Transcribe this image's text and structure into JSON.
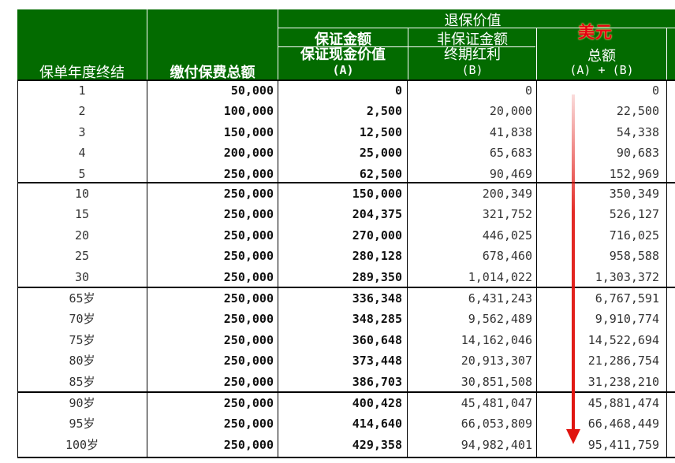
{
  "header": {
    "year_col": "保单年度终结",
    "premium_col": "缴付保费总额",
    "surrender_value": "退保价值",
    "guaranteed": "保证金额",
    "non_guaranteed": "非保证金额",
    "gcv": "保证现金价值",
    "gcv_sub": "(A)",
    "terminal_bonus": "终期红利",
    "terminal_bonus_sub": "(B)",
    "total": "总额",
    "total_sub": "(A) + (B)",
    "currency_annotation": "美元"
  },
  "colors": {
    "header_bg": "#036b00",
    "annotation": "#e60012",
    "arrow": "#e0140f"
  },
  "groups": [
    [
      {
        "year": "1",
        "premium": "50,000",
        "gcv": "0",
        "bonus": "0",
        "total": "0"
      },
      {
        "year": "2",
        "premium": "100,000",
        "gcv": "2,500",
        "bonus": "20,000",
        "total": "22,500"
      },
      {
        "year": "3",
        "premium": "150,000",
        "gcv": "12,500",
        "bonus": "41,838",
        "total": "54,338"
      },
      {
        "year": "4",
        "premium": "200,000",
        "gcv": "25,000",
        "bonus": "65,683",
        "total": "90,683"
      },
      {
        "year": "5",
        "premium": "250,000",
        "gcv": "62,500",
        "bonus": "90,469",
        "total": "152,969"
      }
    ],
    [
      {
        "year": "10",
        "premium": "250,000",
        "gcv": "150,000",
        "bonus": "200,349",
        "total": "350,349"
      },
      {
        "year": "15",
        "premium": "250,000",
        "gcv": "204,375",
        "bonus": "321,752",
        "total": "526,127"
      },
      {
        "year": "20",
        "premium": "250,000",
        "gcv": "270,000",
        "bonus": "446,025",
        "total": "716,025"
      },
      {
        "year": "25",
        "premium": "250,000",
        "gcv": "280,128",
        "bonus": "678,460",
        "total": "958,588"
      },
      {
        "year": "30",
        "premium": "250,000",
        "gcv": "289,350",
        "bonus": "1,014,022",
        "total": "1,303,372"
      }
    ],
    [
      {
        "year": "65岁",
        "premium": "250,000",
        "gcv": "336,348",
        "bonus": "6,431,243",
        "total": "6,767,591"
      },
      {
        "year": "70岁",
        "premium": "250,000",
        "gcv": "348,285",
        "bonus": "9,562,489",
        "total": "9,910,774"
      },
      {
        "year": "75岁",
        "premium": "250,000",
        "gcv": "360,648",
        "bonus": "14,162,046",
        "total": "14,522,694"
      },
      {
        "year": "80岁",
        "premium": "250,000",
        "gcv": "373,448",
        "bonus": "20,913,307",
        "total": "21,286,754"
      },
      {
        "year": "85岁",
        "premium": "250,000",
        "gcv": "386,703",
        "bonus": "30,851,508",
        "total": "31,238,210"
      }
    ],
    [
      {
        "year": "90岁",
        "premium": "250,000",
        "gcv": "400,428",
        "bonus": "45,481,047",
        "total": "45,881,474"
      },
      {
        "year": "95岁",
        "premium": "250,000",
        "gcv": "414,640",
        "bonus": "66,053,809",
        "total": "66,468,449"
      },
      {
        "year": "100岁",
        "premium": "250,000",
        "gcv": "429,358",
        "bonus": "94,982,401",
        "total": "95,411,759"
      }
    ]
  ]
}
